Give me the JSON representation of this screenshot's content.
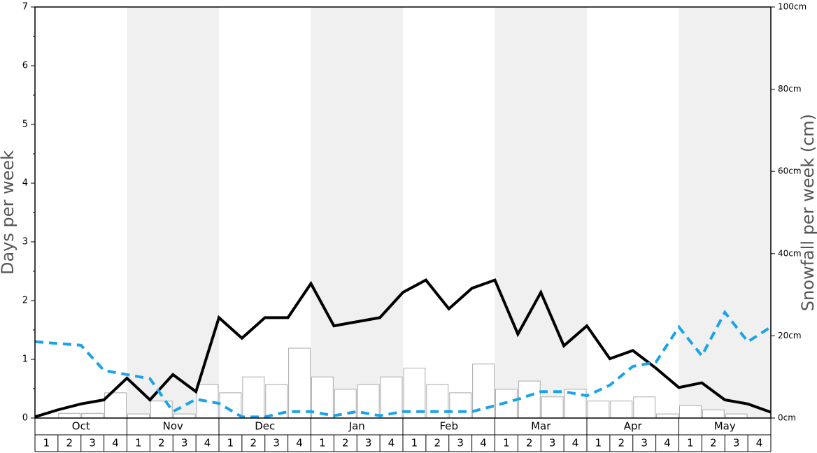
{
  "chart_data": {
    "type": "bar-line",
    "ylabel": "Days per week",
    "y2label": "Snowfall per week (cm)",
    "ylim": [
      0,
      7
    ],
    "yticks": [
      0,
      1,
      2,
      3,
      4,
      5,
      6,
      7
    ],
    "yminorticks": [
      0.5,
      1.5,
      2.5,
      3.5,
      4.5,
      5.5,
      6.5
    ],
    "y2lim": [
      0,
      100
    ],
    "y2ticks": [
      {
        "value": 0,
        "label": "0cm"
      },
      {
        "value": 20,
        "label": "20cm"
      },
      {
        "value": 40,
        "label": "40cm"
      },
      {
        "value": 60,
        "label": "60cm"
      },
      {
        "value": 80,
        "label": "80cm"
      },
      {
        "value": 100,
        "label": "100cm"
      }
    ],
    "months": [
      "Oct",
      "Nov",
      "Dec",
      "Jan",
      "Feb",
      "Mar",
      "Apr",
      "May"
    ],
    "categories": [
      "1",
      "2",
      "3",
      "4",
      "1",
      "2",
      "3",
      "4",
      "1",
      "2",
      "3",
      "4",
      "1",
      "2",
      "3",
      "4",
      "1",
      "2",
      "3",
      "4",
      "1",
      "2",
      "3",
      "4",
      "1",
      "2",
      "3",
      "4",
      "1",
      "2",
      "3",
      "4"
    ],
    "values": [
      0,
      0.08,
      0.08,
      0.43,
      0.07,
      0.29,
      0.07,
      0.57,
      0.43,
      0.7,
      0.57,
      1.19,
      0.7,
      0.49,
      0.57,
      0.7,
      0.85,
      0.57,
      0.43,
      0.92,
      0.49,
      0.63,
      0.36,
      0.49,
      0.29,
      0.29,
      0.36,
      0.07,
      0.21,
      0.14,
      0.07,
      0
    ],
    "bar_color": "#ffffff",
    "bar_edge": "#aaaaaa",
    "shade_color": "#f0f0f0",
    "xlim": [
      0,
      32
    ],
    "x": [
      0,
      1,
      2,
      3,
      4,
      5,
      6,
      7,
      8,
      9,
      10,
      11,
      12,
      13,
      14,
      15,
      16,
      17,
      18,
      19,
      20,
      21,
      22,
      23,
      24,
      25,
      26,
      27,
      28,
      29,
      30,
      31,
      32
    ],
    "series": [
      {
        "color": "#000000",
        "dashed": false,
        "values": [
          0.02,
          0.14,
          0.24,
          0.31,
          0.68,
          0.31,
          0.74,
          0.45,
          1.71,
          1.36,
          1.71,
          1.71,
          2.29,
          1.57,
          1.64,
          1.71,
          2.14,
          2.35,
          1.86,
          2.21,
          2.35,
          1.43,
          2.14,
          1.23,
          1.57,
          1.01,
          1.15,
          0.85,
          0.52,
          0.6,
          0.31,
          0.24,
          0.1
        ]
      },
      {
        "color": "#1aa3e8",
        "dashed": true,
        "values": [
          1.3,
          1.27,
          1.24,
          0.81,
          0.74,
          0.67,
          0.11,
          0.32,
          0.25,
          0.02,
          0.02,
          0.11,
          0.11,
          0.04,
          0.11,
          0.04,
          0.11,
          0.11,
          0.11,
          0.11,
          0.21,
          0.32,
          0.45,
          0.45,
          0.38,
          0.56,
          0.88,
          0.95,
          1.55,
          1.06,
          1.8,
          1.3,
          1.55
        ]
      }
    ]
  }
}
